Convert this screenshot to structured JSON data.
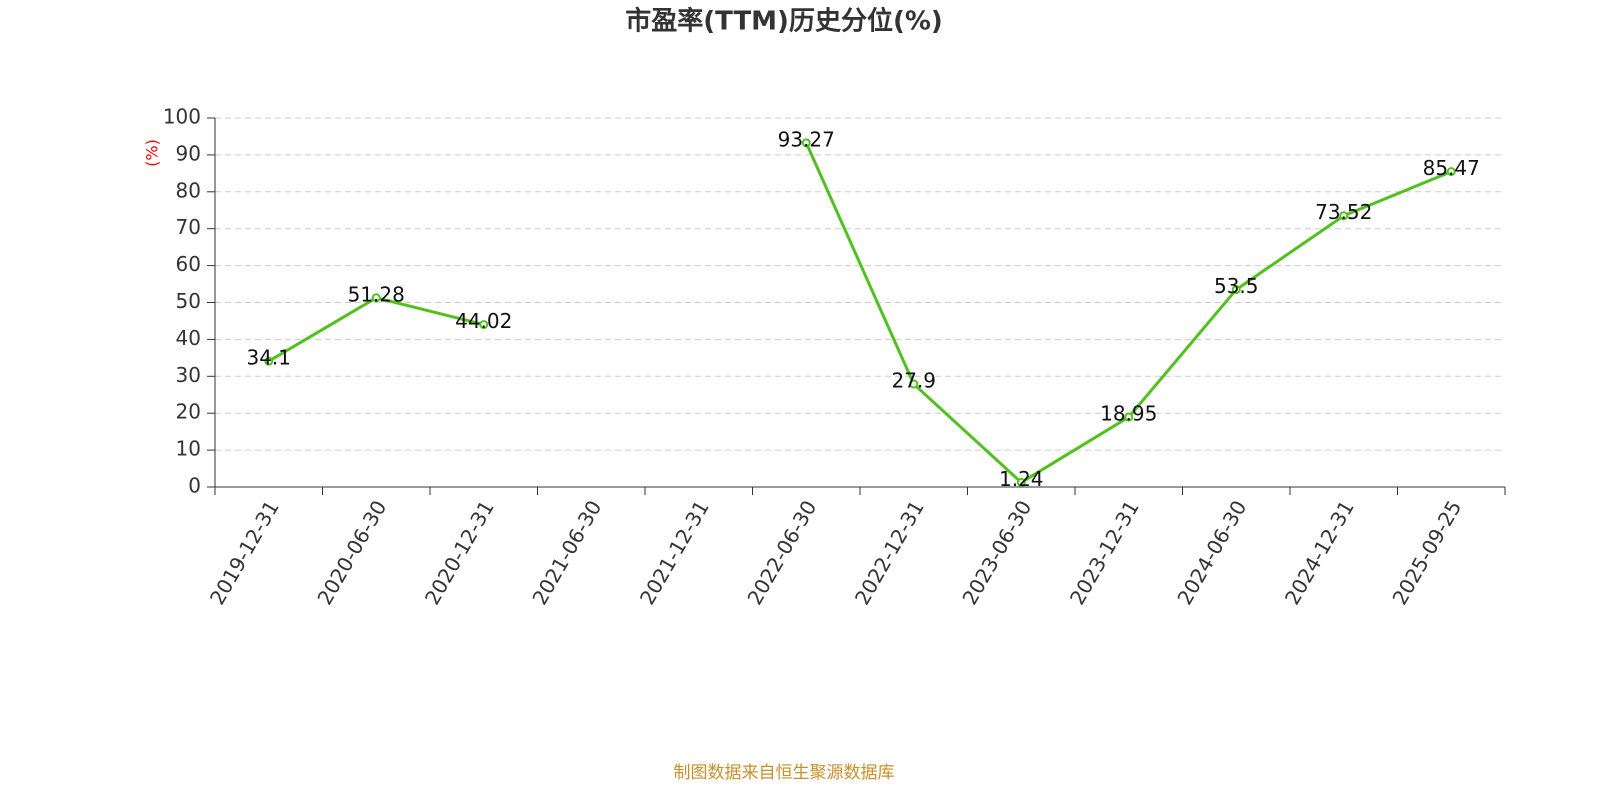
{
  "chart_data": {
    "type": "line",
    "title": "市盈率(TTM)历史分位(%)",
    "y_label": "(%)",
    "footer": "制图数据来自恒生聚源数据库",
    "categories": [
      "2019-12-31",
      "2020-06-30",
      "2020-12-31",
      "2021-06-30",
      "2021-12-31",
      "2022-06-30",
      "2022-12-31",
      "2023-06-30",
      "2023-12-31",
      "2024-06-30",
      "2024-12-31",
      "2025-09-25"
    ],
    "values": [
      34.1,
      51.28,
      44.02,
      null,
      null,
      93.27,
      27.9,
      1.24,
      18.95,
      53.5,
      73.52,
      85.47
    ],
    "color": "#52c01e",
    "ylim": [
      0,
      100
    ],
    "yticks": [
      0,
      10,
      20,
      30,
      40,
      50,
      60,
      70,
      80,
      90,
      100
    ],
    "grid": true
  }
}
